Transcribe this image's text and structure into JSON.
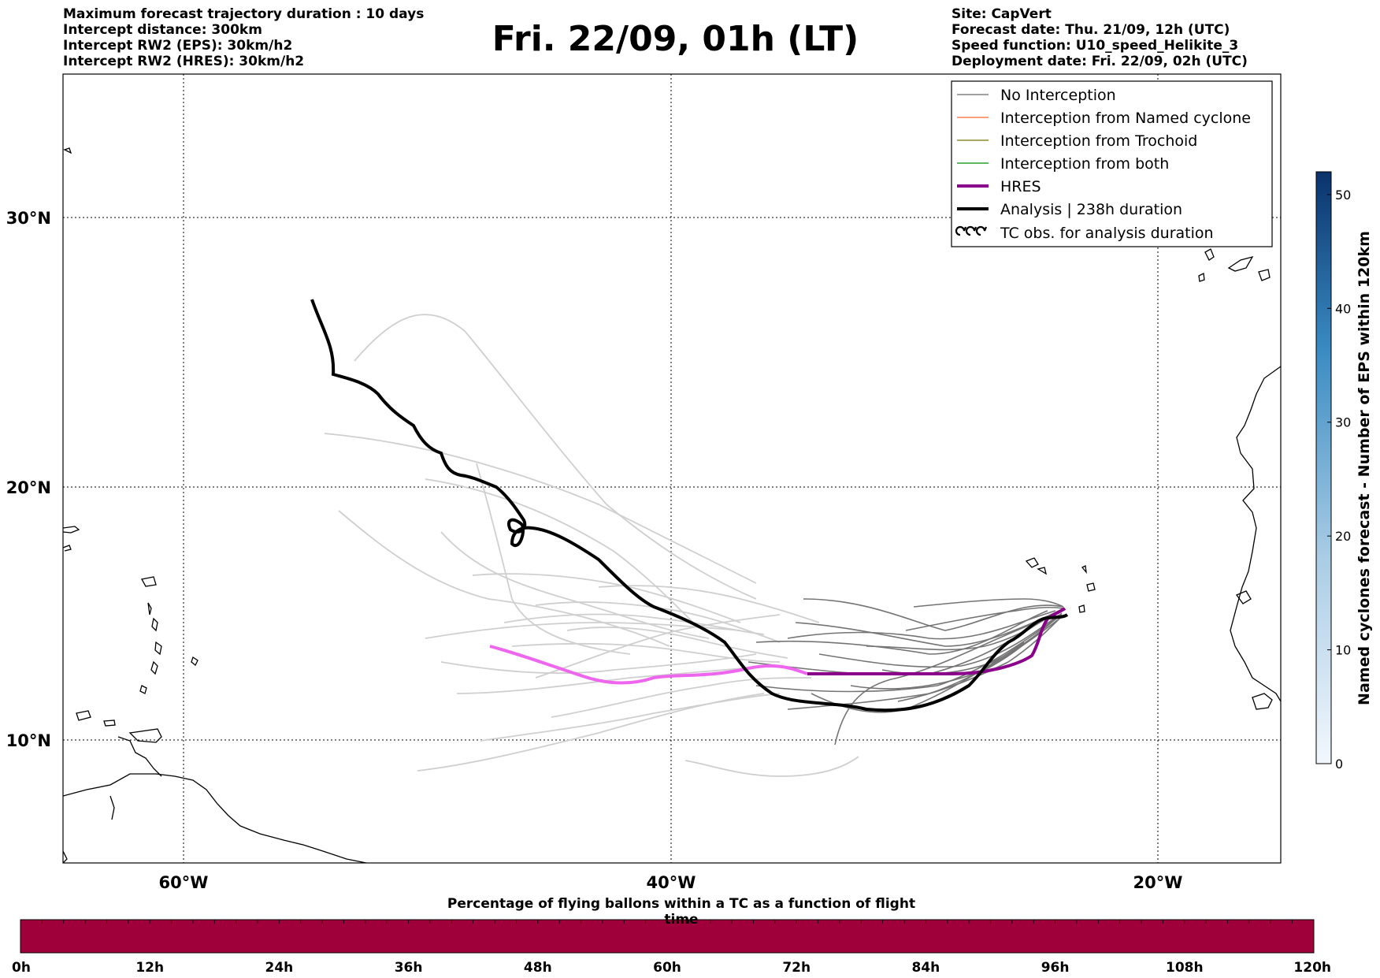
{
  "title": "Fri. 22/09, 01h (LT)",
  "info_left": [
    "Maximum forecast trajectory duration : 10 days",
    "Intercept distance: 300km",
    "Intercept RW2 (EPS):  30km/h2",
    "Intercept RW2 (HRES): 30km/h2"
  ],
  "info_right": [
    "Site: CapVert",
    "Forecast date: Thu. 21/09, 12h (UTC)",
    "Speed function: U10_speed_Helikite_3",
    "Deployment date: Fri. 22/09, 02h (UTC)"
  ],
  "map": {
    "lon_range": [
      -65,
      -15
    ],
    "lat_range": [
      5,
      34
    ],
    "lat_ticks": [
      {
        "label": "30°N",
        "value": 30
      },
      {
        "label": "20°N",
        "value": 20
      },
      {
        "label": "10°N",
        "value": 10
      }
    ],
    "lon_ticks": [
      {
        "label": "60°W",
        "value": -60
      },
      {
        "label": "40°W",
        "value": -40
      },
      {
        "label": "20°W",
        "value": -20
      }
    ]
  },
  "legend": {
    "items": [
      {
        "label": "No Interception",
        "color": "#808080"
      },
      {
        "label": "Interception from Named cyclone",
        "color": "#ff7f50"
      },
      {
        "label": "Interception from Trochoid",
        "color": "#8b8b2a"
      },
      {
        "label": "Interception from both",
        "color": "#2ca02c"
      },
      {
        "label": "HRES",
        "color": "#8b008b"
      },
      {
        "label": "Analysis | 238h duration",
        "color": "#000000"
      },
      {
        "label": "TC obs. for analysis duration",
        "color": "#000000"
      }
    ]
  },
  "colorbar_right": {
    "label": "Named cyclones forecast - Number of EPS within 120km",
    "ticks": [
      "0",
      "10",
      "20",
      "30",
      "40",
      "50"
    ],
    "max": 52
  },
  "colorbar_bottom": {
    "label": "Percentage of flying ballons within a TC as a function of flight time",
    "color": "#a0003a",
    "ticks": [
      "0h",
      "12h",
      "24h",
      "36h",
      "48h",
      "60h",
      "72h",
      "84h",
      "96h",
      "108h",
      "120h"
    ]
  }
}
